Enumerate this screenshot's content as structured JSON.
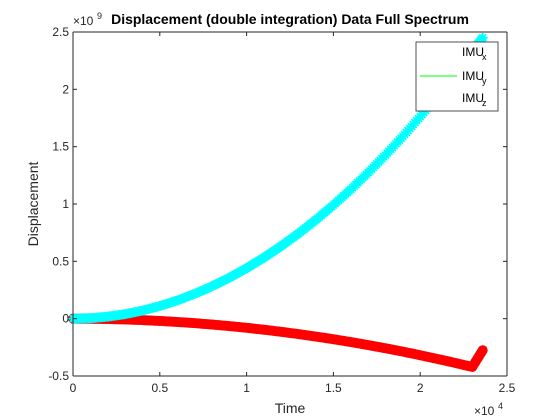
{
  "chart_data": {
    "type": "scatter",
    "title": "Displacement (double integration) Data Full Spectrum",
    "xlabel": "Time",
    "ylabel": "Displacement",
    "x_exponent": "×10",
    "x_exponent_power": "4",
    "y_exponent": "×10",
    "y_exponent_power": "9",
    "xlim": [
      0,
      25000
    ],
    "ylim": [
      -0.5,
      2.5
    ],
    "x_ticks": [
      0,
      5000,
      10000,
      15000,
      20000,
      25000
    ],
    "x_tick_labels": [
      "0",
      "0.5",
      "1",
      "1.5",
      "2",
      "2.5"
    ],
    "y_ticks": [
      -0.5,
      0,
      0.5,
      1,
      1.5,
      2,
      2.5
    ],
    "y_tick_labels": [
      "-0.5",
      "0",
      "0.5",
      "1",
      "1.5",
      "2",
      "2.5"
    ],
    "grid": false,
    "legend_position": "top-right",
    "series": [
      {
        "name": "IMU",
        "subscript": "x",
        "marker": "none",
        "color": "#ffffff",
        "x": [
          0,
          23600
        ],
        "y": [
          0,
          0
        ]
      },
      {
        "name": "IMU",
        "subscript": "y",
        "marker": "line",
        "color": "#00ff00",
        "x": [
          0,
          23600
        ],
        "y": [
          0,
          0
        ]
      },
      {
        "name": "IMU",
        "subscript": "z",
        "marker": "none",
        "color": "#ffffff",
        "x": [
          0,
          23600
        ],
        "y": [
          0,
          0
        ]
      },
      {
        "name": "",
        "marker": "circle",
        "color": "#ff0000",
        "x": [
          0,
          1000,
          2000,
          3000,
          4000,
          5000,
          6000,
          7000,
          8000,
          9000,
          10000,
          11000,
          12000,
          13000,
          14000,
          15000,
          16000,
          17000,
          18000,
          19000,
          20000,
          21000,
          22000,
          23000,
          23600
        ],
        "y": [
          0,
          -0.0008,
          -0.0032,
          -0.0072,
          -0.0127,
          -0.0199,
          -0.0287,
          -0.039,
          -0.051,
          -0.0645,
          -0.0796,
          -0.0964,
          -0.1147,
          -0.1346,
          -0.1561,
          -0.1792,
          -0.2039,
          -0.2302,
          -0.2581,
          -0.2875,
          -0.3185,
          -0.3512,
          -0.3854,
          -0.4212,
          -0.2752
        ]
      },
      {
        "name": "",
        "marker": "star",
        "color": "#00ffff",
        "x": [
          0,
          1000,
          2000,
          3000,
          4000,
          5000,
          6000,
          7000,
          8000,
          9000,
          10000,
          11000,
          12000,
          13000,
          14000,
          15000,
          16000,
          17000,
          18000,
          19000,
          20000,
          21000,
          22000,
          23000,
          23600
        ],
        "y": [
          0,
          0.0044,
          0.0176,
          0.0396,
          0.0705,
          0.1101,
          0.1585,
          0.2158,
          0.2818,
          0.3567,
          0.4403,
          0.5328,
          0.6341,
          0.7442,
          0.8631,
          0.9908,
          1.1274,
          1.2727,
          1.4269,
          1.5899,
          1.7617,
          1.9423,
          2.1317,
          2.33,
          2.45
        ]
      }
    ]
  }
}
